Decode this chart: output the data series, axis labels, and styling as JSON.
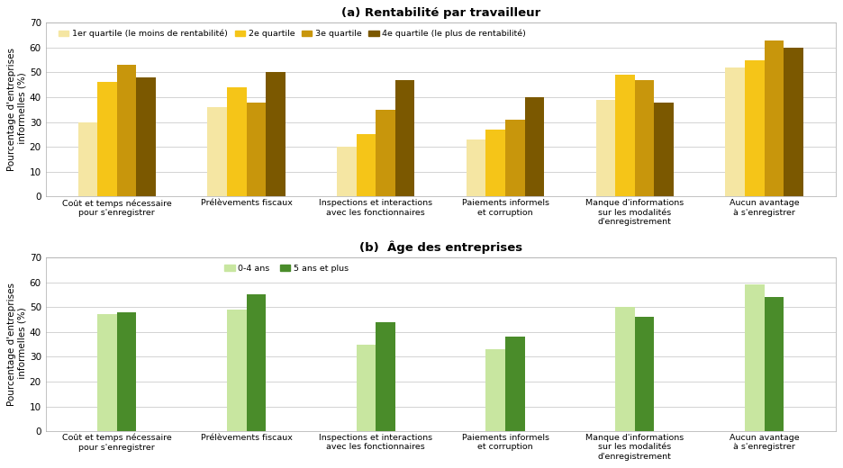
{
  "title_a": "(a) Rentabilité par travailleur",
  "title_b": "(b)  Âge des entreprises",
  "ylabel": "Pourcentage d'entreprises\n informelles (%)",
  "categories": [
    "Coût et temps nécessaire\npour s'enregistrer",
    "Prélèvements fiscaux",
    "Inspections et interactions\navec les fonctionnaires",
    "Paiements informels\net corruption",
    "Manque d'informations\nsur les modalités\nd'enregistrement",
    "Aucun avantage\nà s'enregistrer"
  ],
  "panel_a": {
    "series": [
      {
        "label": "1er quartile (le moins de rentabilité)",
        "values": [
          30,
          36,
          20,
          23,
          39,
          52
        ],
        "color": "#F5E6A3"
      },
      {
        "label": "2e quartile",
        "values": [
          46,
          44,
          25,
          27,
          49,
          55
        ],
        "color": "#F5C518"
      },
      {
        "label": "3e quartile",
        "values": [
          53,
          38,
          35,
          31,
          47,
          63
        ],
        "color": "#C8960C"
      },
      {
        "label": "4e quartile (le plus de rentabilité)",
        "values": [
          48,
          50,
          47,
          40,
          38,
          60
        ],
        "color": "#7B5800"
      }
    ]
  },
  "panel_b": {
    "series": [
      {
        "label": "0-4 ans",
        "values": [
          47,
          49,
          35,
          33,
          50,
          59
        ],
        "color": "#C8E6A0"
      },
      {
        "label": "5 ans et plus",
        "values": [
          48,
          55,
          44,
          38,
          46,
          54
        ],
        "color": "#4A8C2A"
      }
    ]
  },
  "ylim": [
    0,
    70
  ],
  "yticks": [
    0,
    10,
    20,
    30,
    40,
    50,
    60,
    70
  ],
  "bg_color": "#FFFFFF",
  "grid_color": "#CCCCCC"
}
